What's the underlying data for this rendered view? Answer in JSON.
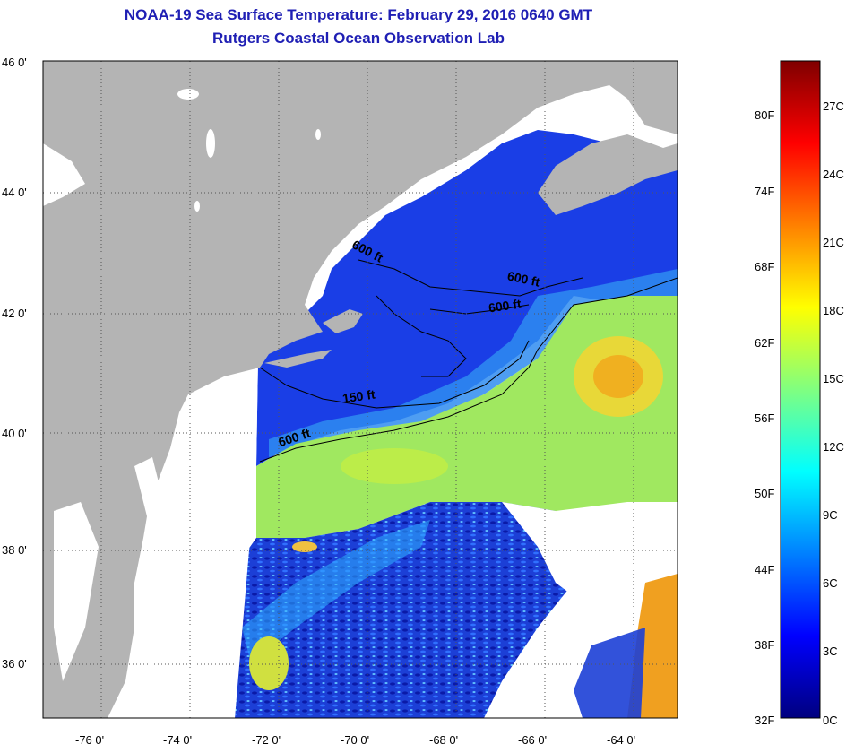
{
  "title": {
    "line1": "NOAA-19 Sea Surface Temperature:  February 29, 2016 0640 GMT",
    "line2": "Rutgers Coastal Ocean Observation Lab"
  },
  "map": {
    "lat_labels": [
      "46 0'",
      "44 0'",
      "42 0'",
      "40 0'",
      "38 0'",
      "36 0'"
    ],
    "lon_labels": [
      "-76 0'",
      "-74 0'",
      "-72 0'",
      "-70 0'",
      "-68 0'",
      "-66 0'",
      "-64 0'"
    ],
    "isobath_labels": [
      "600 ft",
      "600 ft",
      "600 ft",
      "150 ft",
      "600 ft"
    ],
    "colors": {
      "land": "#b4b4b4",
      "no_data": "#ffffff",
      "cold_water": "#1a3ee6",
      "warm_water": "#a0e860",
      "warm_core": "#f0d020"
    }
  },
  "colorbar": {
    "fahrenheit_labels": [
      "80F",
      "74F",
      "68F",
      "62F",
      "56F",
      "50F",
      "44F",
      "38F",
      "32F"
    ],
    "celsius_labels": [
      "27C",
      "24C",
      "21C",
      "18C",
      "15C",
      "12C",
      "9C",
      "6C",
      "3C",
      "0C"
    ],
    "min_f": 32,
    "max_f": 84,
    "colors": [
      "#00007f",
      "#0000ff",
      "#0080ff",
      "#00ffff",
      "#80ff80",
      "#ffff00",
      "#ff8000",
      "#ff0000",
      "#7f0000"
    ]
  }
}
